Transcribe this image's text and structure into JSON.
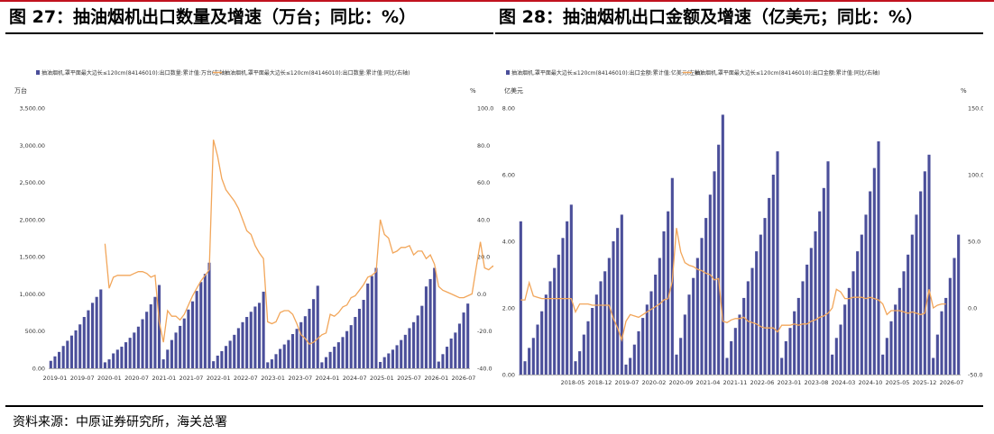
{
  "source": "资料来源：中原证券研究所，海关总署",
  "colors": {
    "bar": "#4b4f9a",
    "line": "#f2a65a",
    "accent": "#c1121f"
  },
  "chart_data": [
    {
      "type": "bar",
      "title": "图 27：抽油烟机出口数量及增速（万台；同比：%）",
      "ylabel_left": "万台",
      "ylabel_right": "%",
      "legend": "top-left",
      "series": [
        {
          "name": "抽油烟机,罩平面最大边长≤120cm(84146010):出口数量:累计值:万台(左轴)",
          "type": "bar",
          "axis": "left",
          "values": [
            100,
            160,
            220,
            300,
            370,
            440,
            510,
            590,
            690,
            780,
            880,
            960,
            1060,
            80,
            120,
            200,
            250,
            290,
            350,
            410,
            480,
            560,
            660,
            760,
            860,
            960,
            1120,
            120,
            250,
            380,
            480,
            570,
            670,
            790,
            900,
            1040,
            1160,
            1270,
            1420,
            95,
            170,
            230,
            300,
            370,
            450,
            540,
            620,
            690,
            760,
            830,
            880,
            1030,
            80,
            120,
            190,
            260,
            320,
            380,
            460,
            530,
            620,
            700,
            800,
            930,
            1110,
            80,
            150,
            220,
            290,
            350,
            420,
            500,
            580,
            690,
            800,
            920,
            1140,
            1240,
            1350,
            85,
            150,
            200,
            250,
            310,
            380,
            450,
            540,
            620,
            710,
            840,
            1100,
            1200,
            1350,
            90,
            190,
            290,
            400,
            480,
            600,
            750,
            870
          ]
        },
        {
          "name": "抽油烟机,罩平面最大边长≤120cm(84146010):出口数量:累计值:同比(右轴)",
          "type": "line",
          "axis": "right",
          "values": [
            27,
            3,
            9,
            10,
            10,
            10,
            10,
            11,
            12,
            12,
            11,
            9,
            10,
            -15,
            -26,
            -9,
            -12,
            -12,
            -14,
            -11,
            -6,
            -1,
            3,
            7,
            10,
            13,
            83,
            74,
            62,
            56,
            53,
            50,
            46,
            40,
            34,
            32,
            26,
            22,
            19,
            -15,
            -16,
            -15,
            -10,
            -9,
            -9,
            -11,
            -16,
            -22,
            -24,
            -27,
            -26,
            -24,
            -22,
            -21,
            -11,
            -12,
            -10,
            -7,
            -6,
            -2,
            -1,
            2,
            5,
            9,
            10,
            12,
            40,
            32,
            30,
            22,
            23,
            25,
            25,
            26,
            21,
            23,
            23,
            19,
            21,
            16,
            4,
            2,
            1,
            0,
            -1,
            -2,
            -2,
            -1,
            0,
            14,
            28,
            14,
            13,
            15,
            13
          ],
          "x_offset": 13
        }
      ],
      "x_tick_labels": [
        "2019-01",
        "2019-07",
        "2020-01",
        "2020-07",
        "2021-01",
        "2021-07",
        "2022-01",
        "2022-07",
        "2023-01",
        "2023-07",
        "2024-01",
        "2024-07",
        "2025-01",
        "2025-07",
        "2026-01",
        "2026-07"
      ],
      "y_left": {
        "min": 0,
        "max": 3500,
        "ticks": [
          "0.00",
          "500.00",
          "1,000.00",
          "1,500.00",
          "2,000.00",
          "2,500.00",
          "3,000.00",
          "3,500.00"
        ]
      },
      "y_right": {
        "min": -40,
        "max": 100,
        "ticks": [
          "-40.0",
          "-20.0",
          "0.0",
          "20.0",
          "40.0",
          "60.0",
          "80.0",
          "100.0"
        ]
      }
    },
    {
      "type": "bar",
      "title": "图 28：抽油烟机出口金额及增速（亿美元；同比：%）",
      "ylabel_left": "亿美元",
      "ylabel_right": "%",
      "legend": "top-left",
      "series": [
        {
          "name": "抽油烟机,罩平面最大边长≤120cm(84146010):出口金额:累计值:亿美元(左轴)",
          "type": "bar",
          "axis": "left",
          "values": [
            4.6,
            0.4,
            0.8,
            1.1,
            1.5,
            1.9,
            2.4,
            2.8,
            3.2,
            3.6,
            4.1,
            4.6,
            5.1,
            0.4,
            0.7,
            1.2,
            1.6,
            2.0,
            2.4,
            2.8,
            3.1,
            3.5,
            4.0,
            4.4,
            4.8,
            0.3,
            0.5,
            0.9,
            1.3,
            1.7,
            2.1,
            2.5,
            3.0,
            3.5,
            4.3,
            4.9,
            5.9,
            0.6,
            1.1,
            1.8,
            2.4,
            2.9,
            3.5,
            4.1,
            4.7,
            5.4,
            6.1,
            6.9,
            7.8,
            0.5,
            1.0,
            1.4,
            1.8,
            2.3,
            2.8,
            3.2,
            3.7,
            4.2,
            4.7,
            5.3,
            6.0,
            6.7,
            0.5,
            1.0,
            1.4,
            1.9,
            2.3,
            2.8,
            3.3,
            3.8,
            4.3,
            4.9,
            5.6,
            6.4,
            0.6,
            1.1,
            1.5,
            2.1,
            2.6,
            3.1,
            3.7,
            4.2,
            4.8,
            5.5,
            6.2,
            7.0,
            0.6,
            1.1,
            1.6,
            2.1,
            2.6,
            3.1,
            3.6,
            4.2,
            4.8,
            5.5,
            6.1,
            6.6,
            0.5,
            1.2,
            1.9,
            2.3,
            2.9,
            3.5,
            4.2
          ]
        },
        {
          "name": "抽油烟机,罩平面最大边长≤120cm(84146010):出口金额:累计值:同比(右轴)",
          "type": "line",
          "axis": "right",
          "values": [
            6,
            6,
            19,
            9,
            8,
            7,
            7,
            7,
            7,
            7,
            7,
            7,
            7,
            -3,
            3,
            3,
            3,
            2,
            2,
            2,
            2,
            2,
            -8,
            -15,
            -24,
            -10,
            -5,
            -6,
            -7,
            -5,
            -3,
            -1,
            1,
            3,
            6,
            7,
            20,
            60,
            42,
            34,
            32,
            31,
            29,
            28,
            26,
            25,
            21,
            22,
            -10,
            -11,
            -9,
            -8,
            -8,
            -7,
            -10,
            -11,
            -12,
            -14,
            -15,
            -15,
            -15,
            -18,
            -13,
            -13,
            -13,
            -12,
            -13,
            -12,
            -12,
            -10,
            -9,
            -7,
            -6,
            -4,
            0,
            14,
            12,
            7,
            7,
            8,
            8,
            8,
            7,
            8,
            7,
            6,
            3,
            -5,
            -2,
            -2,
            -2,
            -3,
            -4,
            -3,
            -4,
            -5,
            -4,
            14,
            0,
            2,
            3,
            3
          ],
          "x_offset": 0
        }
      ],
      "x_tick_labels": [
        "2018-05",
        "2018-12",
        "2019-07",
        "2020-02",
        "2020-09",
        "2021-04",
        "2021-11",
        "2022-06",
        "2023-01",
        "2023-08",
        "2024-03",
        "2024-10",
        "2025-05",
        "2025-12",
        "2026-07"
      ],
      "y_left": {
        "min": 0,
        "max": 8,
        "ticks": [
          "0.00",
          "2.00",
          "4.00",
          "6.00",
          "8.00"
        ]
      },
      "y_right": {
        "min": -50,
        "max": 150,
        "ticks": [
          "-50.0",
          "0.0",
          "50.0",
          "100.0",
          "150.0"
        ]
      }
    }
  ]
}
